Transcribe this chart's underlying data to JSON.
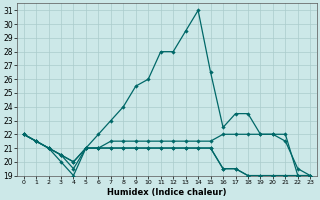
{
  "xlabel": "Humidex (Indice chaleur)",
  "background_color": "#cce8e8",
  "grid_color": "#aacccc",
  "line_color": "#006868",
  "xlim": [
    -0.5,
    23.5
  ],
  "ylim": [
    19,
    31.5
  ],
  "xtick_labels": [
    "0",
    "1",
    "2",
    "3",
    "4",
    "5",
    "6",
    "7",
    "8",
    "9",
    "10",
    "11",
    "12",
    "13",
    "14",
    "15",
    "16",
    "17",
    "18",
    "19",
    "20",
    "21",
    "22",
    "23"
  ],
  "xtick_positions": [
    0,
    1,
    2,
    3,
    4,
    5,
    6,
    7,
    8,
    9,
    10,
    11,
    12,
    13,
    14,
    15,
    16,
    17,
    18,
    19,
    20,
    21,
    22,
    23
  ],
  "ytick_positions": [
    19,
    20,
    21,
    22,
    23,
    24,
    25,
    26,
    27,
    28,
    29,
    30,
    31
  ],
  "line1_x": [
    0,
    1,
    2,
    3,
    4,
    5,
    6,
    7,
    8,
    9,
    10,
    11,
    12,
    13,
    14,
    15,
    16,
    17,
    18,
    19,
    20,
    21,
    22,
    23
  ],
  "line1_y": [
    22,
    21.5,
    21,
    20.5,
    20,
    21,
    21,
    21,
    21,
    21,
    21,
    21,
    21,
    21,
    21,
    21,
    19.5,
    19.5,
    19,
    19,
    19,
    19,
    19,
    19
  ],
  "line2_x": [
    0,
    1,
    2,
    3,
    4,
    5,
    6,
    7,
    8,
    9,
    10,
    11,
    12,
    13,
    14,
    15,
    16,
    17,
    18,
    19,
    20,
    21,
    22,
    23
  ],
  "line2_y": [
    22,
    21.5,
    21,
    20.5,
    19.5,
    21,
    21,
    21,
    21,
    21,
    21,
    21,
    21,
    21,
    21,
    21,
    19.5,
    19.5,
    19,
    19,
    19,
    19,
    19,
    19
  ],
  "line3_x": [
    0,
    1,
    2,
    3,
    4,
    5,
    6,
    7,
    8,
    9,
    10,
    11,
    12,
    13,
    14,
    15,
    16,
    17,
    18,
    19,
    20,
    21,
    22,
    23
  ],
  "line3_y": [
    22,
    21.5,
    21,
    20,
    19,
    21,
    22,
    23,
    24,
    25.5,
    26,
    28,
    28,
    29.5,
    31,
    26.5,
    22.5,
    23.5,
    23.5,
    22,
    22,
    21.5,
    19.5,
    19
  ],
  "line4_x": [
    0,
    1,
    2,
    3,
    4,
    5,
    6,
    7,
    8,
    9,
    10,
    11,
    12,
    13,
    14,
    15,
    16,
    17,
    18,
    19,
    20,
    21,
    22,
    23
  ],
  "line4_y": [
    22,
    21.5,
    21,
    20.5,
    20,
    21,
    21,
    21.5,
    21.5,
    21.5,
    21.5,
    21.5,
    21.5,
    21.5,
    21.5,
    21.5,
    22,
    22,
    22,
    22,
    22,
    22,
    19,
    19
  ]
}
